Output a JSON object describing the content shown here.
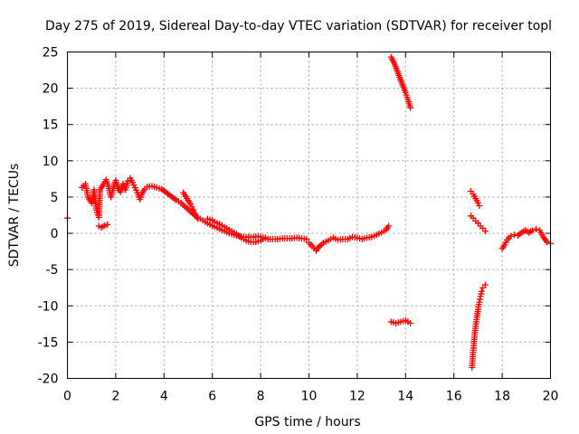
{
  "chart_data": {
    "type": "scatter",
    "title": "Day 275 of 2019, Sidereal Day-to-day VTEC variation (SDTVAR) for receiver topl",
    "xlabel": "GPS time / hours",
    "ylabel": "SDTVAR / TECUs",
    "xlim": [
      0,
      20
    ],
    "ylim": [
      -20,
      25
    ],
    "x_ticks": [
      0,
      2,
      4,
      6,
      8,
      10,
      12,
      14,
      16,
      18,
      20
    ],
    "y_ticks": [
      -20,
      -15,
      -10,
      -5,
      0,
      5,
      10,
      15,
      20,
      25
    ],
    "x_tick_labels": [
      "0",
      "2",
      "4",
      "6",
      "8",
      "10",
      "12",
      "14",
      "16",
      "18",
      "20"
    ],
    "y_tick_labels": [
      "-20",
      "-15",
      "-10",
      "-5",
      "0",
      "5",
      "10",
      "15",
      "20",
      "25"
    ],
    "grid": true,
    "marker": "+",
    "marker_color": "#ff0000",
    "series": [
      {
        "name": "SDTVAR",
        "segments": [
          [
            [
              0.0,
              2.1
            ]
          ],
          [
            [
              0.6,
              6.3
            ],
            [
              0.75,
              6.8
            ],
            [
              0.85,
              5.0
            ],
            [
              1.0,
              4.2
            ],
            [
              1.1,
              6.0
            ],
            [
              1.2,
              3.2
            ],
            [
              1.3,
              2.2
            ],
            [
              1.35,
              6.0
            ],
            [
              1.5,
              6.8
            ],
            [
              1.6,
              7.4
            ],
            [
              1.7,
              6.5
            ],
            [
              1.8,
              5.0
            ],
            [
              1.9,
              6.2
            ],
            [
              2.0,
              7.3
            ],
            [
              2.1,
              6.2
            ],
            [
              2.2,
              5.7
            ],
            [
              2.3,
              6.8
            ],
            [
              2.4,
              6.0
            ],
            [
              2.5,
              7.2
            ],
            [
              2.6,
              7.6
            ],
            [
              2.7,
              7.0
            ],
            [
              2.8,
              6.3
            ],
            [
              2.9,
              5.6
            ],
            [
              3.0,
              4.7
            ],
            [
              3.1,
              5.6
            ],
            [
              3.2,
              6.1
            ],
            [
              3.3,
              6.4
            ],
            [
              3.5,
              6.5
            ],
            [
              3.7,
              6.3
            ],
            [
              3.9,
              6.1
            ],
            [
              4.1,
              5.6
            ],
            [
              4.3,
              5.1
            ],
            [
              4.5,
              4.6
            ],
            [
              4.7,
              4.2
            ],
            [
              4.9,
              3.6
            ],
            [
              5.1,
              3.0
            ],
            [
              5.3,
              2.4
            ],
            [
              5.5,
              2.0
            ],
            [
              5.7,
              1.6
            ],
            [
              5.9,
              1.2
            ],
            [
              6.1,
              0.9
            ],
            [
              6.3,
              0.6
            ],
            [
              6.5,
              0.3
            ],
            [
              6.7,
              0.0
            ],
            [
              6.9,
              -0.2
            ],
            [
              7.1,
              -0.4
            ],
            [
              7.3,
              -0.5
            ],
            [
              7.5,
              -0.5
            ],
            [
              7.7,
              -0.5
            ],
            [
              7.9,
              -0.4
            ],
            [
              8.1,
              -0.6
            ],
            [
              8.3,
              -0.8
            ],
            [
              8.5,
              -0.8
            ],
            [
              8.7,
              -0.8
            ],
            [
              8.9,
              -0.7
            ],
            [
              9.1,
              -0.7
            ],
            [
              9.3,
              -0.7
            ],
            [
              9.5,
              -0.6
            ],
            [
              9.7,
              -0.7
            ],
            [
              9.9,
              -0.8
            ]
          ],
          [
            [
              1.3,
              1.0
            ],
            [
              1.4,
              0.8
            ],
            [
              1.55,
              1.1
            ],
            [
              1.65,
              1.2
            ]
          ],
          [
            [
              4.8,
              5.6
            ],
            [
              4.95,
              4.8
            ],
            [
              5.1,
              4.0
            ],
            [
              5.2,
              3.3
            ],
            [
              5.3,
              2.5
            ],
            [
              5.4,
              2.0
            ]
          ],
          [
            [
              5.8,
              2.0
            ],
            [
              6.0,
              1.8
            ],
            [
              6.2,
              1.4
            ],
            [
              6.4,
              1.1
            ],
            [
              6.6,
              0.7
            ],
            [
              6.8,
              0.3
            ],
            [
              7.0,
              -0.1
            ],
            [
              7.2,
              -0.6
            ],
            [
              7.4,
              -1.0
            ],
            [
              7.6,
              -1.2
            ],
            [
              7.8,
              -1.2
            ],
            [
              8.0,
              -1.0
            ],
            [
              8.2,
              -0.6
            ]
          ],
          [
            [
              10.0,
              -1.3
            ],
            [
              10.2,
              -2.0
            ],
            [
              10.3,
              -2.4
            ],
            [
              10.4,
              -1.9
            ],
            [
              10.6,
              -1.3
            ],
            [
              10.8,
              -1.0
            ],
            [
              11.0,
              -0.6
            ],
            [
              11.2,
              -0.9
            ],
            [
              11.4,
              -0.8
            ],
            [
              11.6,
              -0.8
            ],
            [
              11.8,
              -0.5
            ],
            [
              12.0,
              -0.6
            ],
            [
              12.2,
              -0.8
            ],
            [
              12.4,
              -0.6
            ],
            [
              12.6,
              -0.5
            ],
            [
              12.8,
              -0.2
            ],
            [
              13.0,
              0.1
            ],
            [
              13.2,
              0.5
            ],
            [
              13.3,
              1.0
            ]
          ],
          [
            [
              13.4,
              24.3
            ],
            [
              13.55,
              23.3
            ],
            [
              13.7,
              22.0
            ],
            [
              13.85,
              20.7
            ],
            [
              14.0,
              19.4
            ],
            [
              14.1,
              18.4
            ],
            [
              14.2,
              17.3
            ]
          ],
          [
            [
              13.4,
              -12.2
            ],
            [
              13.6,
              -12.4
            ],
            [
              13.8,
              -12.2
            ],
            [
              14.0,
              -12.0
            ],
            [
              14.2,
              -12.4
            ]
          ],
          [
            [
              16.7,
              5.8
            ],
            [
              16.8,
              5.4
            ],
            [
              16.9,
              4.8
            ],
            [
              17.0,
              4.2
            ],
            [
              17.05,
              3.8
            ]
          ],
          [
            [
              16.7,
              2.4
            ],
            [
              16.8,
              2.1
            ],
            [
              16.9,
              1.7
            ],
            [
              17.0,
              1.4
            ],
            [
              17.1,
              1.0
            ],
            [
              17.2,
              0.7
            ],
            [
              17.3,
              0.3
            ]
          ],
          [
            [
              16.75,
              -18.5
            ],
            [
              16.78,
              -17.0
            ],
            [
              16.82,
              -15.5
            ],
            [
              16.86,
              -14.0
            ],
            [
              16.9,
              -12.8
            ],
            [
              16.95,
              -11.6
            ],
            [
              17.0,
              -10.5
            ],
            [
              17.05,
              -9.5
            ],
            [
              17.1,
              -8.7
            ],
            [
              17.15,
              -8.0
            ],
            [
              17.2,
              -7.5
            ],
            [
              17.3,
              -7.1
            ]
          ],
          [
            [
              18.0,
              -2.1
            ],
            [
              18.1,
              -1.6
            ],
            [
              18.2,
              -0.9
            ],
            [
              18.35,
              -0.4
            ],
            [
              18.5,
              -0.2
            ],
            [
              18.65,
              -0.3
            ],
            [
              18.8,
              0.1
            ],
            [
              18.95,
              0.4
            ],
            [
              19.1,
              0.1
            ],
            [
              19.25,
              0.4
            ],
            [
              19.4,
              0.6
            ],
            [
              19.55,
              0.4
            ],
            [
              19.7,
              -0.5
            ],
            [
              19.85,
              -1.2
            ],
            [
              20.0,
              -1.4
            ]
          ]
        ]
      }
    ]
  }
}
